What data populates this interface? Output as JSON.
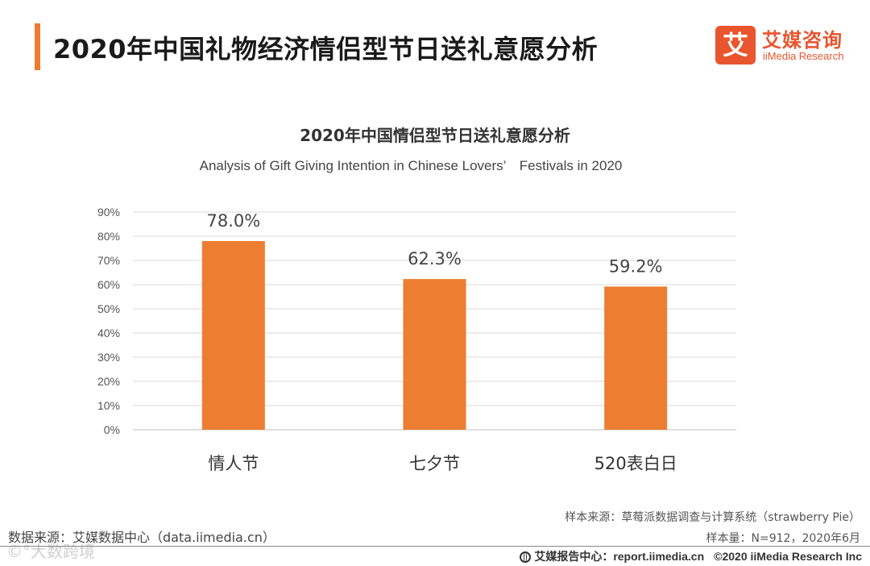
{
  "header": {
    "title": "2020年中国礼物经济情侣型节日送礼意愿分析",
    "accent_color": "#ee7b30"
  },
  "logo": {
    "mark": "艾",
    "name_cn": "艾媒咨询",
    "name_en": "iiMedia Research",
    "color": "#e8552e"
  },
  "chart_data": {
    "type": "bar",
    "title": "2020年中国情侣型节日送礼意愿分析",
    "subtitle": "Analysis of Gift Giving Intention in Chinese Lovers’　Festivals in 2020",
    "categories": [
      "情人节",
      "七夕节",
      "520表白日"
    ],
    "values": [
      78.0,
      62.3,
      59.2
    ],
    "value_labels": [
      "78.0%",
      "62.3%",
      "59.2%"
    ],
    "y_ticks": [
      "0%",
      "10%",
      "20%",
      "30%",
      "40%",
      "50%",
      "60%",
      "70%",
      "80%",
      "90%"
    ],
    "ylim": [
      0,
      90
    ],
    "xlabel": "",
    "ylabel": "",
    "grid": true,
    "bar_color": "#ed7d31"
  },
  "source": {
    "data_source": "数据来源：艾媒数据中心（data.iimedia.cn）",
    "sample_source": "样本来源：草莓派数据调查与计算系统（strawberry Pie）",
    "sample_size": "样本量：N=912，2020年6月"
  },
  "footer": {
    "report_center": "艾媒报告中心：report.iimedia.cn",
    "copyright": "©2020  iiMedia Research  Inc"
  },
  "watermark": "©°大数跨境"
}
